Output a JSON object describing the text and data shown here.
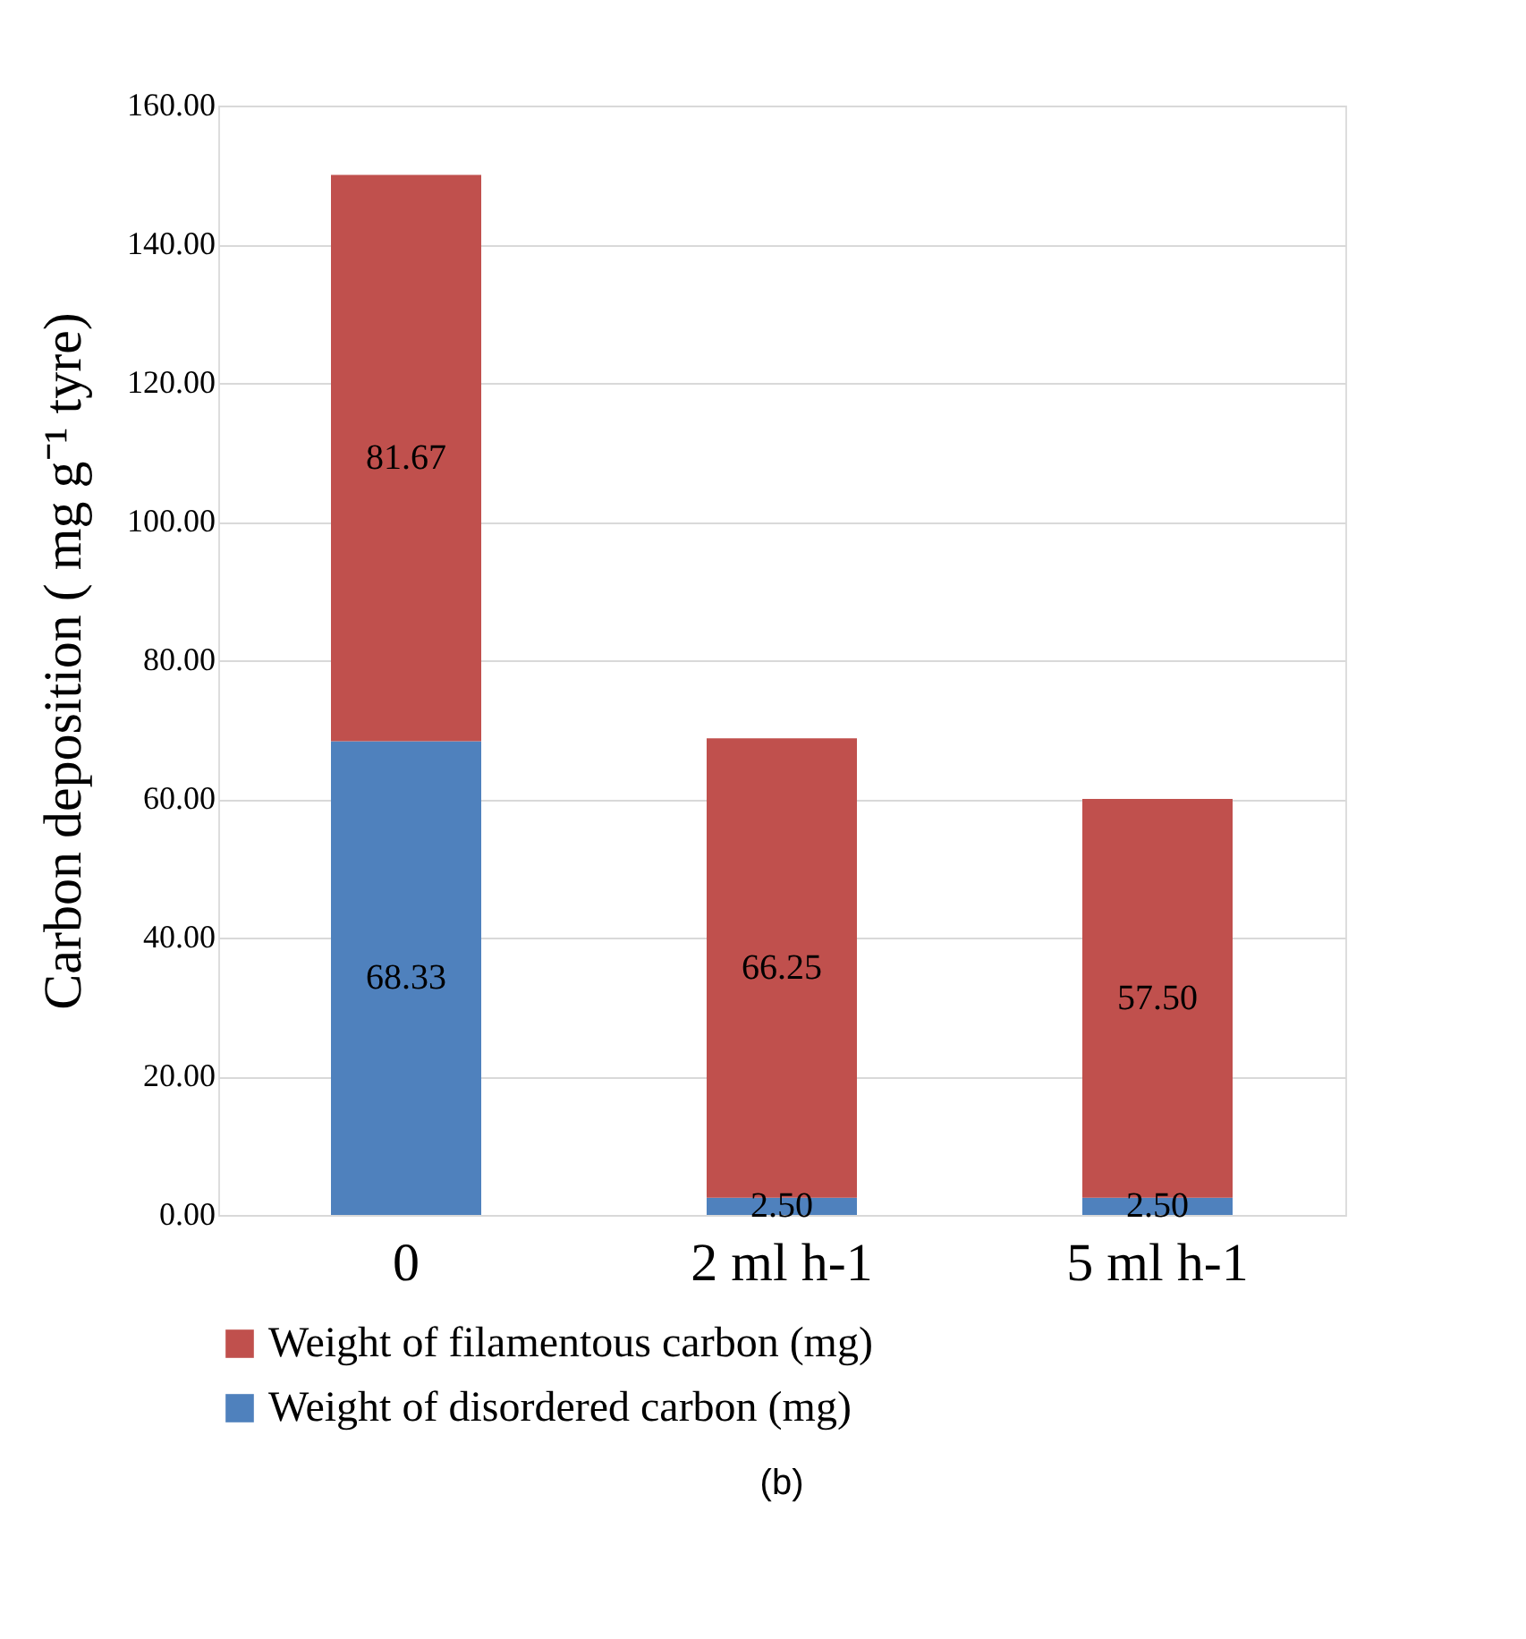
{
  "chart_data": {
    "type": "bar",
    "stacked": true,
    "categories": [
      "0",
      "2 ml h-1",
      "5 ml h-1"
    ],
    "series": [
      {
        "name": "Weight of disordered carbon (mg)",
        "color": "#4f81bd",
        "values": [
          68.33,
          2.5,
          2.5
        ],
        "value_labels": [
          "68.33",
          "2.50",
          "2.50"
        ]
      },
      {
        "name": "Weight of filamentous carbon (mg)",
        "color": "#c0504d",
        "values": [
          81.67,
          66.25,
          57.5
        ],
        "value_labels": [
          "81.67",
          "66.25",
          "57.50"
        ]
      }
    ],
    "ylabel": "Carbon deposition ( mg g⁻¹ tyre)",
    "ylim": [
      0,
      160
    ],
    "yticks": [
      {
        "value": 0,
        "label": "0.00"
      },
      {
        "value": 20,
        "label": "20.00"
      },
      {
        "value": 40,
        "label": "40.00"
      },
      {
        "value": 60,
        "label": "60.00"
      },
      {
        "value": 80,
        "label": "80.00"
      },
      {
        "value": 100,
        "label": "100.00"
      },
      {
        "value": 120,
        "label": "120.00"
      },
      {
        "value": 140,
        "label": "140.00"
      },
      {
        "value": 160,
        "label": "160.00"
      }
    ],
    "grid": "y",
    "legend": "bottom",
    "annotations": [
      "(b)"
    ]
  }
}
